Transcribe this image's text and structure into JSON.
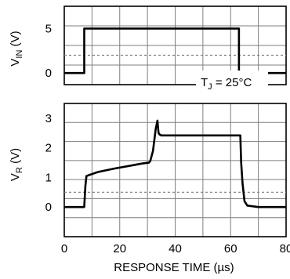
{
  "chart_data": {
    "type": "line",
    "xlabel": "RESPONSE TIME (µs)",
    "xlim": [
      0,
      80
    ],
    "x_ticks": [
      "0",
      "20",
      "40",
      "60",
      "80"
    ],
    "annotation": "Tj = 25°C",
    "panels": [
      {
        "name": "input",
        "ylabel": "VIN (V)",
        "ylim": [
          -1.3,
          7.5
        ],
        "y_ticks": [
          "0",
          "5"
        ],
        "y_tick_values": [
          0,
          5
        ],
        "dashed_reference": 2,
        "series": [
          {
            "x": [
              0,
              7.2,
              7.2,
              63.0,
              63.0,
              80
            ],
            "y": [
              0,
              0,
              5,
              5,
              0,
              0
            ]
          }
        ]
      },
      {
        "name": "output",
        "ylabel": "VR (V)",
        "ylim": [
          -1.0,
          3.5
        ],
        "y_ticks": [
          "0",
          "1",
          "2",
          "3"
        ],
        "y_tick_values": [
          0,
          1,
          2,
          3
        ],
        "dashed_reference": 0.5,
        "series": [
          {
            "x": [
              0,
              7.2,
              7.6,
              8.0,
              12,
              18,
              24,
              28,
              30.5,
              31.0,
              32.0,
              33.0,
              33.6,
              34.0,
              34.4,
              35.0,
              45,
              55,
              63.5,
              63.8,
              64.3,
              65.0,
              66,
              70,
              80
            ],
            "y": [
              0,
              0,
              0.7,
              1.05,
              1.18,
              1.3,
              1.4,
              1.47,
              1.5,
              1.55,
              1.9,
              2.65,
              2.92,
              2.5,
              2.45,
              2.42,
              2.42,
              2.42,
              2.42,
              1.5,
              0.8,
              0.2,
              0.05,
              0,
              0
            ]
          }
        ]
      }
    ],
    "grid": true,
    "legend": "none"
  },
  "colors": {
    "trace": "#000000",
    "grid": "#7f7f7f",
    "background": "#ffffff"
  }
}
